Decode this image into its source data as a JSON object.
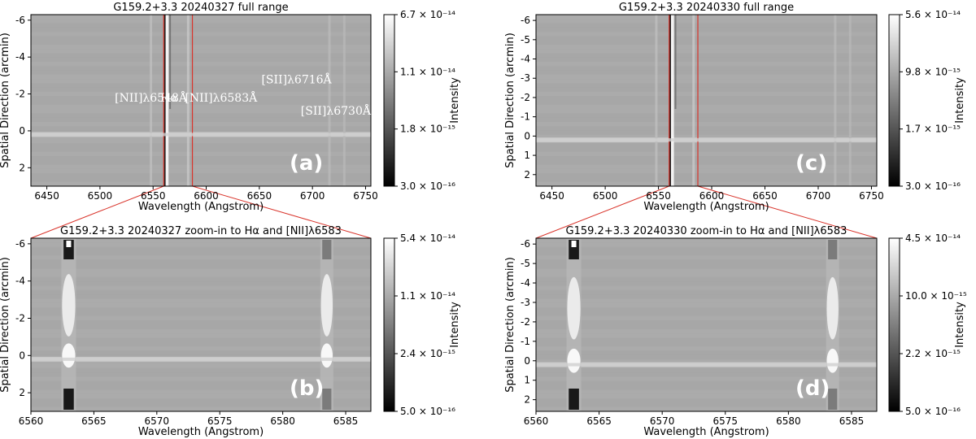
{
  "figure": {
    "panels": [
      {
        "id": "a",
        "letter": "(a)",
        "title": "G159.2+3.3 20240327 full range",
        "xlabel": "Wavelength (Angstrom)",
        "ylabel": "Spatial Direction (arcmin)",
        "xlim": [
          6435,
          6755
        ],
        "ylim": [
          3,
          -6.3
        ],
        "xticks": [
          6450,
          6500,
          6550,
          6600,
          6650,
          6700,
          6750
        ],
        "yticks": [
          -6,
          -4,
          -2,
          0,
          2
        ],
        "colorbar": {
          "label": "Intensity",
          "ticks": [
            "6.7 × 10⁻¹⁴",
            "1.1 × 10⁻¹⁴",
            "1.8 × 10⁻¹⁵",
            "3.0 × 10⁻¹⁶"
          ]
        },
        "line_labels": [
          {
            "text": "[NII]λ6548Å",
            "x": 6548,
            "y": -1.8
          },
          {
            "text": "Hα",
            "x": 6565,
            "y": -1.8
          },
          {
            "text": "[NII]λ6583Å",
            "x": 6614,
            "y": -1.8
          },
          {
            "text": "[SII]λ6716Å",
            "x": 6685,
            "y": -2.8
          },
          {
            "text": "[SII]λ6730Å",
            "x": 6722,
            "y": -1.1
          }
        ],
        "zoom_box": [
          6560,
          6587
        ]
      },
      {
        "id": "b",
        "letter": "(b)",
        "title": "G159.2+3.3 20240327 zoom-in to Hα and [NII]λ6583",
        "xlabel": "Wavelength (Angstrom)",
        "ylabel": "Spatial Direction (arcmin)",
        "xlim": [
          6560,
          6587
        ],
        "ylim": [
          3,
          -6.3
        ],
        "xticks": [
          6560,
          6565,
          6570,
          6575,
          6580,
          6585
        ],
        "yticks": [
          -6,
          -4,
          -2,
          0,
          2
        ],
        "colorbar": {
          "label": "Intensity",
          "ticks": [
            "5.4 × 10⁻¹⁴",
            "1.1 × 10⁻¹⁴",
            "2.4 × 10⁻¹⁵",
            "5.0 × 10⁻¹⁶"
          ]
        }
      },
      {
        "id": "c",
        "letter": "(c)",
        "title": "G159.2+3.3 20240330 full range",
        "xlabel": "Wavelength (Angstrom)",
        "ylabel": "Spatial Direction (arcmin)",
        "xlim": [
          6435,
          6755
        ],
        "ylim": [
          2.6,
          -6.3
        ],
        "xticks": [
          6450,
          6500,
          6550,
          6600,
          6650,
          6700,
          6750
        ],
        "yticks": [
          -6,
          -5,
          -4,
          -3,
          -2,
          -1,
          0,
          1,
          2
        ],
        "colorbar": {
          "label": "Intensity",
          "ticks": [
            "5.6 × 10⁻¹⁴",
            "9.8 × 10⁻¹⁵",
            "1.7 × 10⁻¹⁵",
            "3.0 × 10⁻¹⁶"
          ]
        },
        "zoom_box": [
          6560,
          6587
        ]
      },
      {
        "id": "d",
        "letter": "(d)",
        "title": "G159.2+3.3 20240330 zoom-in to Hα and [NII]λ6583",
        "xlabel": "Wavelength (Angstrom)",
        "ylabel": "Spatial Direction (arcmin)",
        "xlim": [
          6560,
          6587
        ],
        "ylim": [
          2.6,
          -6.3
        ],
        "xticks": [
          6560,
          6565,
          6570,
          6575,
          6580,
          6585
        ],
        "yticks": [
          -6,
          -5,
          -4,
          -3,
          -2,
          -1,
          0,
          1,
          2
        ],
        "colorbar": {
          "label": "Intensity",
          "ticks": [
            "4.5 × 10⁻¹⁴",
            "10.0 × 10⁻¹⁵",
            "2.2 × 10⁻¹⁵",
            "5.0 × 10⁻¹⁶"
          ]
        }
      }
    ]
  },
  "chart_data": [
    {
      "type": "heatmap",
      "title": "G159.2+3.3 20240327 full range",
      "xlabel": "Wavelength (Angstrom)",
      "ylabel": "Spatial Direction (arcmin)",
      "colorbar_label": "Intensity",
      "xlim": [
        6435,
        6755
      ],
      "ylim": [
        3,
        -6.3
      ],
      "emission_lines_angstrom": [
        6548,
        6563,
        6583,
        6716,
        6730
      ],
      "spatial_bright_row_arcmin": 0.2,
      "color_scale": "log gray",
      "vmin": 3e-16,
      "vmax": 6.7e-14
    },
    {
      "type": "heatmap",
      "title": "G159.2+3.3 20240327 zoom-in to Hα and [NII]λ6583",
      "xlabel": "Wavelength (Angstrom)",
      "ylabel": "Spatial Direction (arcmin)",
      "colorbar_label": "Intensity",
      "xlim": [
        6560,
        6587
      ],
      "ylim": [
        3,
        -6.3
      ],
      "emission_lines_angstrom": [
        6563,
        6583.5
      ],
      "spatial_bright_row_arcmin": 0.2,
      "color_scale": "log gray",
      "vmin": 5e-16,
      "vmax": 5.4e-14
    },
    {
      "type": "heatmap",
      "title": "G159.2+3.3 20240330 full range",
      "xlabel": "Wavelength (Angstrom)",
      "ylabel": "Spatial Direction (arcmin)",
      "colorbar_label": "Intensity",
      "xlim": [
        6435,
        6755
      ],
      "ylim": [
        2.6,
        -6.3
      ],
      "emission_lines_angstrom": [
        6548,
        6563,
        6583,
        6716,
        6730
      ],
      "spatial_bright_row_arcmin": 0.2,
      "color_scale": "log gray",
      "vmin": 3e-16,
      "vmax": 5.6e-14
    },
    {
      "type": "heatmap",
      "title": "G159.2+3.3 20240330 zoom-in to Hα and [NII]λ6583",
      "xlabel": "Wavelength (Angstrom)",
      "ylabel": "Spatial Direction (arcmin)",
      "colorbar_label": "Intensity",
      "xlim": [
        6560,
        6587
      ],
      "ylim": [
        2.6,
        -6.3
      ],
      "emission_lines_angstrom": [
        6563,
        6583.5
      ],
      "spatial_bright_row_arcmin": 0.2,
      "color_scale": "log gray",
      "vmin": 5e-16,
      "vmax": 4.5e-14
    }
  ],
  "colors": {
    "background": "#a9a9a9",
    "zoom_box": "#d9342b",
    "panel_letter": "#ffffff"
  }
}
